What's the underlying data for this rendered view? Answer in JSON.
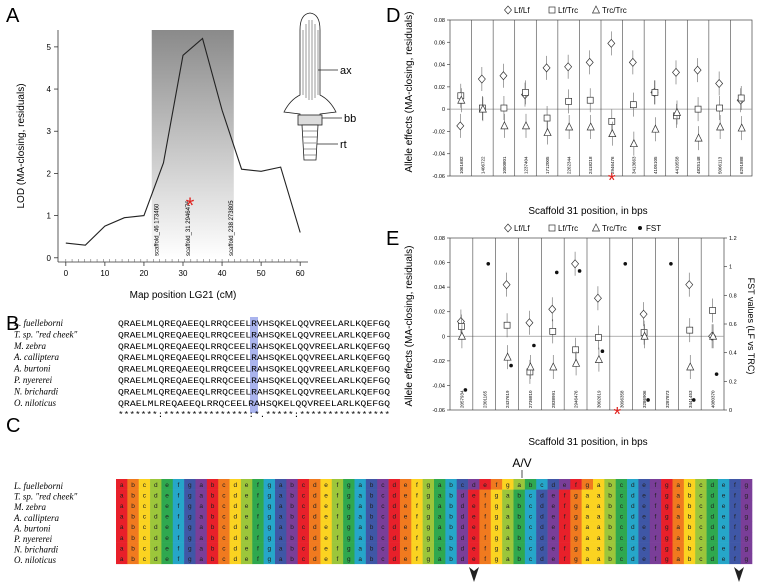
{
  "panels": {
    "A": {
      "label": "A",
      "xlabel": "Map position LG21 (cM)",
      "ylabel": "LOD (MA-closing, residuals)",
      "marker_labels": [
        "scaffold_46 173460",
        "scaffold_31 2946476",
        "scaffold_238 273805"
      ],
      "structure_labels": [
        "ax",
        "bb",
        "rt"
      ]
    },
    "B": {
      "label": "B",
      "species": [
        "L. fuelleborni",
        "T. sp. \"red cheek\"",
        "M. zebra",
        "A. calliptera",
        "A. burtoni",
        "P. nyererei",
        "N. brichardi",
        "O. niloticus"
      ],
      "sequences": [
        "QRAELMLQREQAEEQLRRQCEELRVHSQKELQQVREELARLKQEFGQ",
        "QRAELMLQREQAEEQLRRQCEELRAHSQKELQQVREELARLKQEFGQ",
        "QRAELMLQREQAEEQLRRQCEELRAHSQKELQQVREELARLKQEFGQ",
        "QRAELMLQREQAEEQLRRQCEELRAHSQKELQQVREELARLKQEFGQ",
        "QRAELMLQREQAEEQLRRQCEELRAHSQKELQQVREELARLKQEFGQ",
        "QRAELMLQREQAEEQLRRQCEELRAHSQKELQQVREELARLKQEFGQ",
        "QRAELMLQREQAEEQLRRQCEELRAHSQKELQQVREELARLKQEFGQ",
        "QRAELMLREQAEEQLRRQCEELRAHSQKELQQVREELARLKQEFGQ"
      ],
      "consensus": "*******:***************:*.*****:****************"
    },
    "C": {
      "label": "C",
      "annotation": "A/V",
      "species": [
        "L. fuelleborni",
        "T. sp. \"red cheek\"",
        "M. zebra",
        "A. calliptera",
        "A. burtoni",
        "P. nyererei",
        "N. brichardi",
        "O. niloticus"
      ]
    },
    "D": {
      "label": "D",
      "legend": [
        "Lf/Lf",
        "Lf/Trc",
        "Trc/Trc"
      ],
      "xlabel": "Scaffold 31 position, in bps",
      "ylabel": "Allele effects (MA-closing, residuals)"
    },
    "E": {
      "label": "E",
      "legend": [
        "Lf/Lf",
        "Lf/Trc",
        "Trc/Trc",
        "FST"
      ],
      "xlabel": "Scaffold 31 position, in bps",
      "ylabel": "Allele effects (MA-closing, residuals)",
      "ylabel_right": "FST values (LF vs TRC)"
    }
  },
  "chart_data": [
    {
      "panel": "A",
      "type": "line",
      "x": [
        0,
        5,
        10,
        15,
        20,
        25,
        30,
        35,
        40,
        45,
        50,
        55,
        60
      ],
      "y": [
        0.35,
        0.3,
        0.75,
        0.95,
        1.0,
        2.25,
        4.8,
        5.2,
        3.5,
        2.1,
        2.05,
        2.15,
        0.6
      ],
      "xlim": [
        -2,
        62
      ],
      "ylim": [
        -0.1,
        5.4
      ],
      "xticks": [
        0,
        10,
        20,
        30,
        40,
        50,
        60
      ],
      "yticks": [
        0,
        1,
        2,
        3,
        4,
        5
      ],
      "highlight_range": [
        22,
        43
      ],
      "marker_x": [
        23,
        31,
        42
      ]
    },
    {
      "panel": "D",
      "type": "scatter",
      "xticklabels": [
        "1061682",
        "1406722",
        "1050801",
        "1237404",
        "1712005",
        "2262344",
        "2418218",
        "2946476",
        "3413663",
        "4105105",
        "4410558",
        "4825148",
        "5006113",
        "6291888"
      ],
      "ylim": [
        -0.06,
        0.08
      ],
      "yticks": [
        -0.06,
        -0.04,
        -0.02,
        0,
        0.02,
        0.04,
        0.06,
        0.08
      ],
      "series": [
        {
          "name": "Lf/Lf",
          "values": [
            -0.015,
            0.027,
            0.03,
            0.013,
            0.037,
            0.038,
            0.042,
            0.059,
            0.042,
            0.015,
            0.033,
            0.035,
            0.023,
            0.008
          ]
        },
        {
          "name": "Lf/Trc",
          "values": [
            0.012,
            0.001,
            0.001,
            0.015,
            -0.008,
            0.007,
            0.008,
            -0.011,
            0.004,
            0.015,
            -0.006,
            0.0,
            0.001,
            0.01
          ]
        },
        {
          "name": "Trc/Trc",
          "values": [
            0.008,
            0.0,
            -0.015,
            -0.015,
            -0.021,
            -0.016,
            -0.016,
            -0.022,
            -0.031,
            -0.018,
            -0.003,
            -0.026,
            -0.016,
            -0.017
          ]
        }
      ]
    },
    {
      "panel": "E",
      "type": "scatter",
      "xticklabels": [
        "2057934",
        "2301165",
        "2437619",
        "2736810",
        "2838991",
        "2946476",
        "3002619",
        "3096358",
        "3286906",
        "3287873",
        "3441453",
        "4080370"
      ],
      "ylim": [
        -0.06,
        0.08
      ],
      "yticks": [
        -0.06,
        -0.04,
        -0.02,
        0,
        0.02,
        0.04,
        0.06,
        0.08
      ],
      "y2lim": [
        0,
        1.2
      ],
      "y2ticks": [
        0,
        0.2,
        0.4,
        0.6,
        0.8,
        1,
        1.2
      ],
      "series": [
        {
          "name": "Lf/Lf",
          "values": [
            0.012,
            null,
            0.042,
            0.011,
            0.022,
            0.059,
            0.031,
            null,
            0.018,
            null,
            0.042,
            0.0
          ]
        },
        {
          "name": "Lf/Trc",
          "values": [
            0.008,
            null,
            0.009,
            -0.029,
            0.004,
            -0.011,
            -0.001,
            null,
            0.003,
            null,
            0.005,
            0.021
          ]
        },
        {
          "name": "Trc/Trc",
          "values": [
            0.0,
            null,
            -0.017,
            -0.025,
            -0.025,
            -0.022,
            -0.019,
            null,
            0.0,
            null,
            -0.025,
            0.0
          ]
        },
        {
          "name": "FST",
          "values": [
            0.14,
            1.02,
            0.31,
            0.45,
            0.96,
            0.97,
            0.41,
            1.02,
            0.07,
            1.02,
            0.07,
            0.25
          ]
        }
      ]
    }
  ]
}
